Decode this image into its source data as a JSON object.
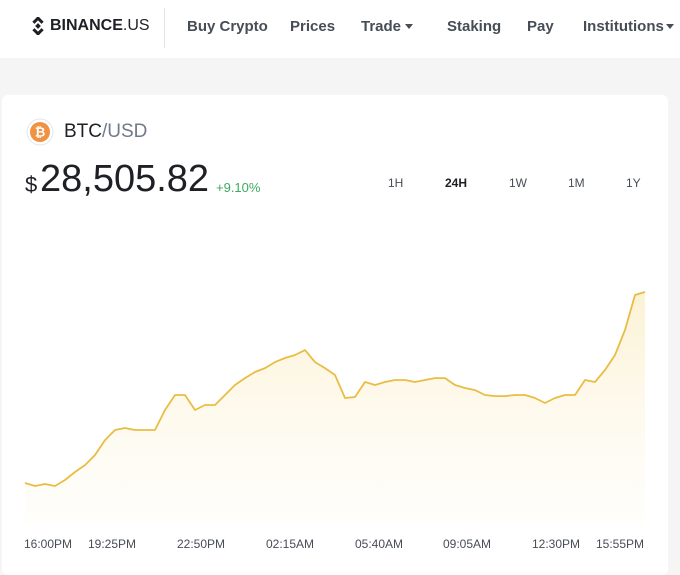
{
  "nav": {
    "logo_main": "BINANCE",
    "logo_suffix": ".US",
    "items": [
      "Buy Crypto",
      "Prices",
      "Trade",
      "Staking",
      "Pay",
      "Institutions"
    ]
  },
  "asset": {
    "base": "BTC",
    "quote": "/USD"
  },
  "price": {
    "currency": "$",
    "value": "28,505.82",
    "change": "+9.10%"
  },
  "timeframes": [
    "1H",
    "24H",
    "1W",
    "1M",
    "1Y"
  ],
  "chart_data": {
    "type": "area",
    "color": "#e9bd44",
    "values": [
      26153,
      26116,
      26140,
      26116,
      26190,
      26288,
      26374,
      26498,
      26682,
      26806,
      26830,
      26806,
      26806,
      26806,
      27052,
      27237,
      27237,
      27052,
      27114,
      27114,
      27237,
      27360,
      27446,
      27520,
      27569,
      27643,
      27693,
      27730,
      27791,
      27643,
      27569,
      27483,
      27200,
      27212,
      27397,
      27360,
      27397,
      27422,
      27422,
      27397,
      27422,
      27446,
      27446,
      27360,
      27323,
      27298,
      27237,
      27224,
      27224,
      27237,
      27237,
      27200,
      27138,
      27200,
      27237,
      27237,
      27422,
      27397,
      27545,
      27730,
      28038,
      28469,
      28505.82
    ],
    "ylim": [
      25697,
      29455
    ],
    "time_labels": [
      "16:00PM",
      "19:25PM",
      "22:50PM",
      "02:15AM",
      "05:40AM",
      "09:05AM",
      "12:30PM",
      "15:55PM"
    ]
  }
}
